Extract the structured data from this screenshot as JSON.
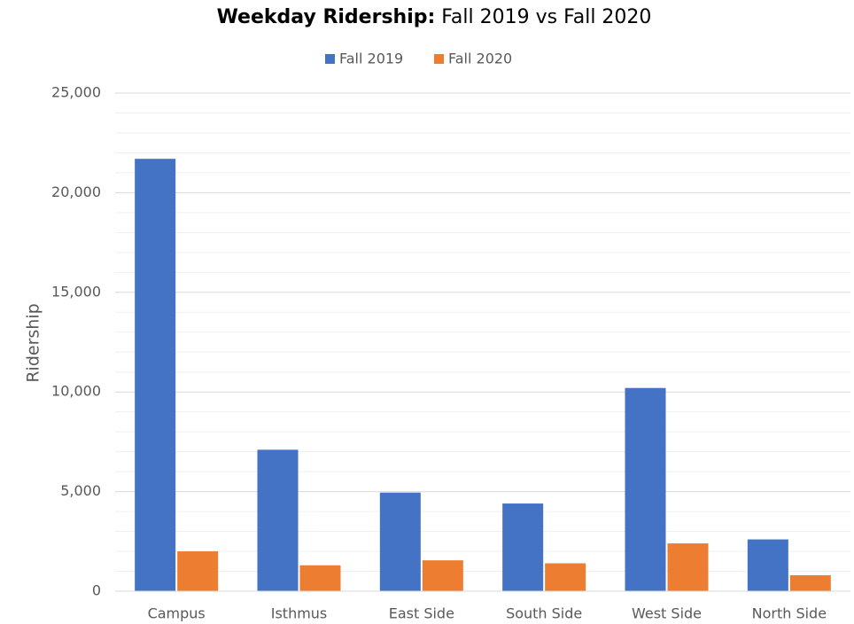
{
  "chart_data": {
    "type": "bar",
    "title": [
      "Weekday Ridership:",
      "Fall 2019 vs Fall 2020"
    ],
    "y_label": "Ridership",
    "categories": [
      "Campus",
      "Isthmus",
      "East Side",
      "South Side",
      "West Side",
      "North Side"
    ],
    "series": [
      {
        "name": "Fall 2019",
        "color": "#4472c4",
        "values": [
          21700,
          7100,
          4950,
          4400,
          10200,
          2600
        ]
      },
      {
        "name": "Fall 2020",
        "color": "#ed7d31",
        "values": [
          2000,
          1300,
          1550,
          1400,
          2400,
          800
        ]
      }
    ],
    "ylim": [
      0,
      25000
    ],
    "yticks": [
      0,
      {
        "value": 5000,
        "label": "5,000"
      },
      {
        "value": 10000,
        "label": "10,000"
      },
      {
        "value": 15000,
        "label": "15,000"
      },
      {
        "value": 20000,
        "label": "20,000"
      },
      {
        "value": 25000,
        "label": "25,000"
      }
    ],
    "yminorticks": [
      1000,
      2000,
      3000,
      4000,
      6000,
      7000,
      8000,
      9000,
      11000,
      12000,
      13000,
      14000,
      16000,
      17000,
      18000,
      19000,
      21000,
      22000,
      23000,
      24000
    ],
    "grid": true,
    "legend": "top"
  }
}
